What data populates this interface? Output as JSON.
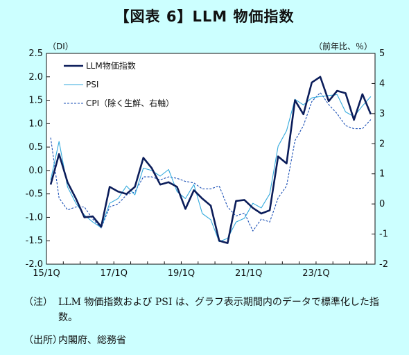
{
  "title": "【図表 6】LLM 物価指数",
  "notes": [
    {
      "label": "（注）",
      "text": "LLM 物価指数および PSI は、グラフ表示期間内のデータで標準化した指数。"
    },
    {
      "label": "（出所）",
      "text": "内閣府、総務省"
    }
  ],
  "chart_data": {
    "type": "line",
    "left_axis_unit": "（DI）",
    "right_axis_unit": "（前年比、％）",
    "left_ylim": [
      -2.0,
      2.5
    ],
    "right_ylim": [
      -2,
      5
    ],
    "left_ticks": [
      "2.5",
      "2.0",
      "1.5",
      "1.0",
      "0.5",
      "0.0",
      "-0.5",
      "-1.0",
      "-1.5",
      "-2.0"
    ],
    "right_ticks": [
      "5",
      "4",
      "3",
      "2",
      "1",
      "0",
      "-1",
      "-2"
    ],
    "x_tick_labels": [
      "15/1Q",
      "17/1Q",
      "19/1Q",
      "21/1Q",
      "23/1Q"
    ],
    "x_tick_index": [
      0,
      8,
      16,
      24,
      32
    ],
    "grid": false,
    "legend_position": "top-left",
    "series": [
      {
        "name": "LLM物価指数",
        "axis": "left",
        "color": "#0b1d5a",
        "style": "solid-thick",
        "values": [
          -0.3,
          0.35,
          -0.25,
          -0.6,
          -1.0,
          -0.98,
          -1.2,
          -0.35,
          -0.45,
          -0.5,
          -0.35,
          0.27,
          0.05,
          -0.3,
          -0.25,
          -0.35,
          -0.82,
          -0.42,
          -0.6,
          -0.75,
          -1.5,
          -1.55,
          -0.65,
          -0.63,
          -0.8,
          -0.92,
          -0.85,
          0.3,
          0.15,
          1.5,
          1.2,
          1.88,
          2.0,
          1.48,
          1.7,
          1.65,
          1.08,
          1.63,
          1.2
        ]
      },
      {
        "name": "PSI",
        "axis": "left",
        "color": "#33aadd",
        "style": "solid-thin",
        "values": [
          -0.2,
          0.62,
          -0.35,
          -0.7,
          -0.95,
          -1.1,
          -1.22,
          -0.7,
          -0.6,
          -0.33,
          -0.52,
          0.05,
          0.0,
          -0.12,
          0.02,
          -0.45,
          -0.6,
          -0.3,
          -0.92,
          -1.05,
          -1.52,
          -1.45,
          -1.1,
          -1.02,
          -0.7,
          -0.8,
          -0.5,
          0.52,
          0.85,
          1.52,
          1.4,
          1.55,
          1.58,
          1.6,
          1.62,
          1.25,
          1.15,
          1.38,
          1.58
        ]
      },
      {
        "name": "CPI（除く生鮮、右軸）",
        "axis": "right",
        "color": "#1a4fb5",
        "style": "dashed",
        "values": [
          2.2,
          0.2,
          -0.2,
          -0.1,
          -0.1,
          -0.5,
          -0.8,
          -0.1,
          0.0,
          0.3,
          0.4,
          0.9,
          0.9,
          0.8,
          0.9,
          0.85,
          0.75,
          0.7,
          0.5,
          0.5,
          0.6,
          -0.1,
          -0.4,
          -0.3,
          -0.9,
          -0.5,
          -0.6,
          0.2,
          0.6,
          2.1,
          2.6,
          3.4,
          3.7,
          3.3,
          3.0,
          2.6,
          2.5,
          2.5,
          2.8
        ]
      }
    ]
  }
}
